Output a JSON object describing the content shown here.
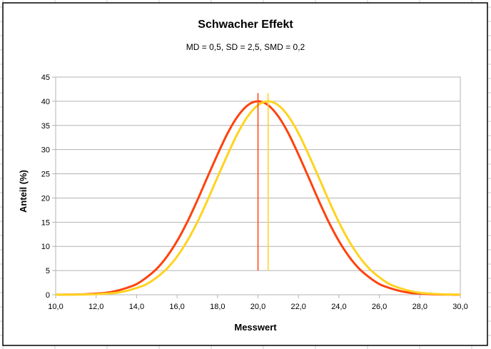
{
  "chart_data": {
    "type": "line",
    "title": "Schwacher Effekt",
    "subtitle": "MD = 0,5, SD = 2,5, SMD = 0,2",
    "xlabel": "Messwert",
    "ylabel": "Anteil (%)",
    "xlim": [
      10,
      30
    ],
    "ylim": [
      0,
      45
    ],
    "x_ticks": [
      "10,0",
      "12,0",
      "14,0",
      "16,0",
      "18,0",
      "20,0",
      "22,0",
      "24,0",
      "26,0",
      "28,0",
      "30,0"
    ],
    "y_ticks": [
      "0",
      "5",
      "10",
      "15",
      "20",
      "25",
      "30",
      "35",
      "40",
      "45"
    ],
    "grid": "horizontal",
    "legend": "none",
    "x": [
      10,
      10.5,
      11,
      11.5,
      12,
      12.5,
      13,
      13.5,
      14,
      14.5,
      15,
      15.5,
      16,
      16.5,
      17,
      17.5,
      18,
      18.5,
      19,
      19.5,
      20,
      20.5,
      21,
      21.5,
      22,
      22.5,
      23,
      23.5,
      24,
      24.5,
      25,
      25.5,
      26,
      26.5,
      27,
      27.5,
      28,
      28.5,
      29,
      29.5,
      30
    ],
    "series": [
      {
        "color": "#ff420e",
        "values": [
          0.01,
          0.03,
          0.06,
          0.12,
          0.24,
          0.4,
          0.8,
          1.4,
          2.2,
          3.6,
          5.4,
          7.9,
          11.1,
          15.0,
          19.5,
          24.3,
          29.0,
          33.4,
          36.9,
          39.2,
          40,
          39.2,
          36.9,
          33.4,
          29.0,
          24.3,
          19.5,
          15.0,
          11.1,
          7.9,
          5.4,
          3.6,
          2.2,
          1.4,
          0.8,
          0.4,
          0.24,
          0.12,
          0.06,
          0.03,
          0.01
        ]
      },
      {
        "color": "#ffd320",
        "values": [
          0.006,
          0.01,
          0.03,
          0.06,
          0.12,
          0.24,
          0.4,
          0.8,
          1.4,
          2.2,
          3.6,
          5.4,
          7.9,
          11.1,
          15.0,
          19.5,
          24.3,
          29.0,
          33.4,
          36.9,
          39.2,
          40,
          39.2,
          36.9,
          33.4,
          29.0,
          24.3,
          19.5,
          15.0,
          11.1,
          7.9,
          5.4,
          3.6,
          2.2,
          1.4,
          0.8,
          0.4,
          0.24,
          0.12,
          0.06,
          0.03
        ]
      }
    ],
    "mean_lines": [
      {
        "x": 20,
        "y_from": 5,
        "y_to": 41.7,
        "color": "#ff420e"
      },
      {
        "x": 20.5,
        "y_from": 5,
        "y_to": 41.7,
        "color": "#ffd320"
      }
    ]
  }
}
